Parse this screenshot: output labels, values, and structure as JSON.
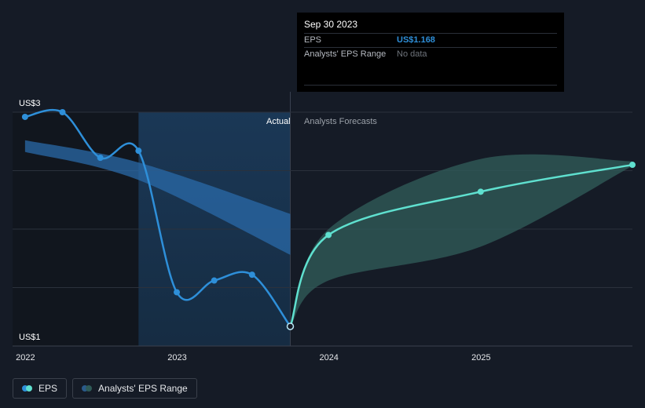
{
  "tooltip": {
    "date": "Sep 30 2023",
    "rows": [
      {
        "label": "EPS",
        "value": "US$1.168"
      },
      {
        "label": "Analysts' EPS Range",
        "value": "No data"
      }
    ]
  },
  "labels": {
    "actual": "Actual",
    "forecast": "Analysts Forecasts"
  },
  "legend": [
    {
      "label": "EPS",
      "color_a": "#2e8fd9",
      "color_b": "#5fe0cf"
    },
    {
      "label": "Analysts' EPS Range",
      "color_a": "#2a5a8a",
      "color_b": "#2f5a57"
    }
  ],
  "colors": {
    "background": "#151b26",
    "eps_actual": "#2e8fd9",
    "eps_forecast": "#5fe0cf",
    "range_past": "#2a6aa8",
    "range_forecast": "#2f5a57",
    "grid": "#2b313c"
  },
  "chart_data": {
    "type": "line",
    "xlim": [
      "2021-12-01",
      "2025-12-31"
    ],
    "ylim": [
      1,
      3
    ],
    "y_ticks": [
      {
        "value": 3,
        "label": "US$3"
      },
      {
        "value": 1,
        "label": "US$1"
      }
    ],
    "x_ticks": [
      {
        "date": "2022-01-01",
        "label": "2022"
      },
      {
        "date": "2023-01-01",
        "label": "2023"
      },
      {
        "date": "2024-01-01",
        "label": "2024"
      },
      {
        "date": "2025-01-01",
        "label": "2025"
      }
    ],
    "highlight_date": "2023-09-30",
    "shade_start": "2022-09-30",
    "series": [
      {
        "name": "EPS",
        "points": [
          {
            "date": "2021-12-31",
            "value": 2.96
          },
          {
            "date": "2022-03-31",
            "value": 3.0
          },
          {
            "date": "2022-06-30",
            "value": 2.61
          },
          {
            "date": "2022-09-30",
            "value": 2.67
          },
          {
            "date": "2022-12-31",
            "value": 1.46
          },
          {
            "date": "2023-03-31",
            "value": 1.56
          },
          {
            "date": "2023-06-30",
            "value": 1.61
          },
          {
            "date": "2023-09-30",
            "value": 1.168
          }
        ]
      },
      {
        "name": "EPS",
        "forecast": true,
        "points": [
          {
            "date": "2023-09-30",
            "value": 1.168
          },
          {
            "date": "2023-12-31",
            "value": 1.95
          },
          {
            "date": "2024-12-31",
            "value": 2.32
          },
          {
            "date": "2025-12-31",
            "value": 2.55
          }
        ]
      }
    ],
    "ranges": [
      {
        "name": "Analysts' EPS Range",
        "points": [
          {
            "date": "2021-12-31",
            "low": 2.66,
            "high": 2.76
          },
          {
            "date": "2022-09-30",
            "low": 2.42,
            "high": 2.57
          },
          {
            "date": "2023-09-30",
            "low": 1.78,
            "high": 2.13
          }
        ]
      },
      {
        "name": "Analysts' EPS Range",
        "forecast": true,
        "points": [
          {
            "date": "2023-09-30",
            "low": 1.168,
            "high": 1.168
          },
          {
            "date": "2023-12-31",
            "low": 1.56,
            "high": 2.0
          },
          {
            "date": "2024-12-31",
            "low": 1.85,
            "high": 2.6
          },
          {
            "date": "2025-12-31",
            "low": 2.54,
            "high": 2.58
          }
        ]
      }
    ]
  }
}
